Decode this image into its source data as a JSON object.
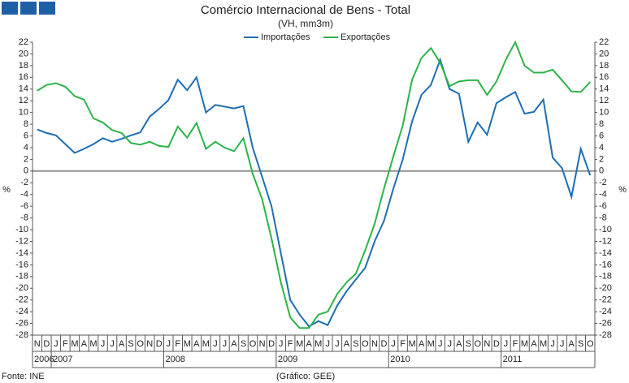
{
  "chart_data": {
    "type": "line",
    "title": "Comércio Internacional de Bens - Total",
    "subtitle": "(VH, mm3m)",
    "y_label": "%",
    "source": "Fonte: INE",
    "credit": "(Gráfico: GEE)",
    "legend": "top",
    "grid": false,
    "categories": [
      "N",
      "D",
      "J",
      "F",
      "M",
      "A",
      "M",
      "J",
      "J",
      "A",
      "S",
      "O",
      "N",
      "D",
      "J",
      "F",
      "M",
      "A",
      "M",
      "J",
      "J",
      "A",
      "S",
      "O",
      "N",
      "D",
      "J",
      "F",
      "M",
      "A",
      "M",
      "J",
      "J",
      "A",
      "S",
      "O",
      "N",
      "D",
      "J",
      "F",
      "M",
      "A",
      "M",
      "J",
      "J",
      "A",
      "S",
      "O",
      "N",
      "D",
      "J",
      "F",
      "M",
      "A",
      "M",
      "J",
      "J",
      "A",
      "S",
      "O"
    ],
    "years": [
      "2006",
      "2007",
      "2008",
      "2009",
      "2010",
      "2011"
    ],
    "ylim": [
      -28,
      22
    ],
    "yticks": [
      -28,
      -26,
      -24,
      -22,
      -20,
      -18,
      -16,
      -14,
      -12,
      -10,
      -8,
      -6,
      -4,
      -2,
      0,
      2,
      4,
      6,
      8,
      10,
      12,
      14,
      16,
      18,
      20,
      22
    ],
    "series": [
      {
        "name": "Importações",
        "color": "#1f6db3",
        "values": [
          7.1,
          6.5,
          6.1,
          4.6,
          3.1,
          3.8,
          4.6,
          5.6,
          5.0,
          5.5,
          6.1,
          6.6,
          9.3,
          10.6,
          12.1,
          15.6,
          13.8,
          16.0,
          10.0,
          11.3,
          11.0,
          10.7,
          11.1,
          4.0,
          -1.0,
          -6.0,
          -14.0,
          -22.0,
          -24.5,
          -26.5,
          -25.6,
          -26.3,
          -23.0,
          -20.5,
          -18.5,
          -16.5,
          -12.0,
          -8.5,
          -3.0,
          2.0,
          8.5,
          13.0,
          14.7,
          19.0,
          14.0,
          13.2,
          5.0,
          8.3,
          6.2,
          11.6,
          12.6,
          13.5,
          9.8,
          10.1,
          12.2,
          2.3,
          0.5,
          -4.4,
          3.8,
          -0.7
        ]
      },
      {
        "name": "Exportações",
        "color": "#2db34a",
        "values": [
          13.7,
          14.7,
          15.0,
          14.4,
          12.8,
          12.2,
          9.0,
          8.3,
          7.0,
          6.5,
          4.8,
          4.5,
          5.0,
          4.3,
          4.1,
          7.6,
          5.7,
          8.2,
          3.8,
          5.0,
          4.0,
          3.4,
          5.6,
          -0.5,
          -4.8,
          -11.5,
          -19.0,
          -25.0,
          -26.8,
          -26.8,
          -24.5,
          -24.0,
          -21.0,
          -19.0,
          -17.5,
          -13.5,
          -9.0,
          -3.0,
          2.5,
          7.8,
          15.6,
          19.3,
          21.0,
          18.5,
          14.5,
          15.3,
          15.5,
          15.5,
          13.0,
          15.3,
          19.0,
          22.0,
          18.0,
          16.8,
          16.8,
          17.3,
          15.5,
          13.6,
          13.5,
          15.2
        ]
      }
    ]
  }
}
